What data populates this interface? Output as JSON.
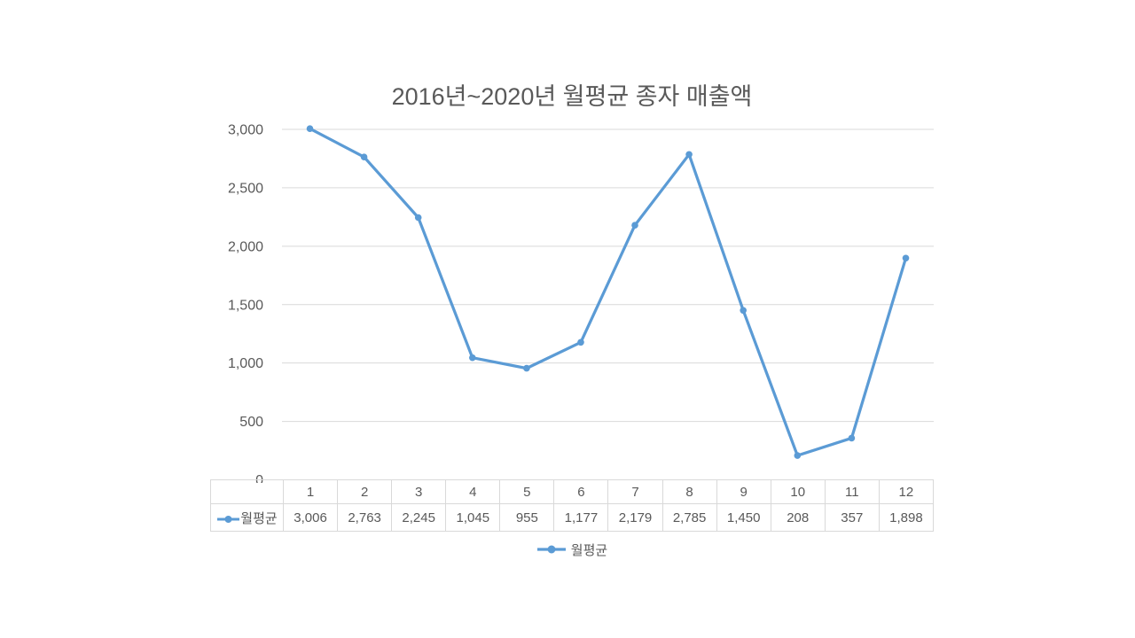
{
  "chart_data": {
    "type": "line",
    "title": "2016년~2020년 월평균 종자 매출액",
    "xlabel": "",
    "ylabel": "",
    "categories": [
      "1",
      "2",
      "3",
      "4",
      "5",
      "6",
      "7",
      "8",
      "9",
      "10",
      "11",
      "12"
    ],
    "series": [
      {
        "name": "월평균",
        "values": [
          3006,
          2763,
          2245,
          1045,
          955,
          1177,
          2179,
          2785,
          1450,
          208,
          357,
          1898
        ],
        "display_values": [
          "3,006",
          "2,763",
          "2,245",
          "1,045",
          "955",
          "1,177",
          "2,179",
          "2,785",
          "1,450",
          "208",
          "357",
          "1,898"
        ]
      }
    ],
    "ylim": [
      0,
      3000
    ],
    "ytick_step": 500,
    "ytick_labels": [
      "0",
      "500",
      "1,000",
      "1,500",
      "2,000",
      "2,500",
      "3,000"
    ],
    "grid": true,
    "data_table_shown": true,
    "legend": {
      "position": "bottom",
      "label": "월평균"
    },
    "colors": {
      "series": "#5B9BD5",
      "gridline": "#D9D9D9",
      "text": "#595959",
      "table_border": "#D9D9D9",
      "background": "#FFFFFF"
    }
  }
}
